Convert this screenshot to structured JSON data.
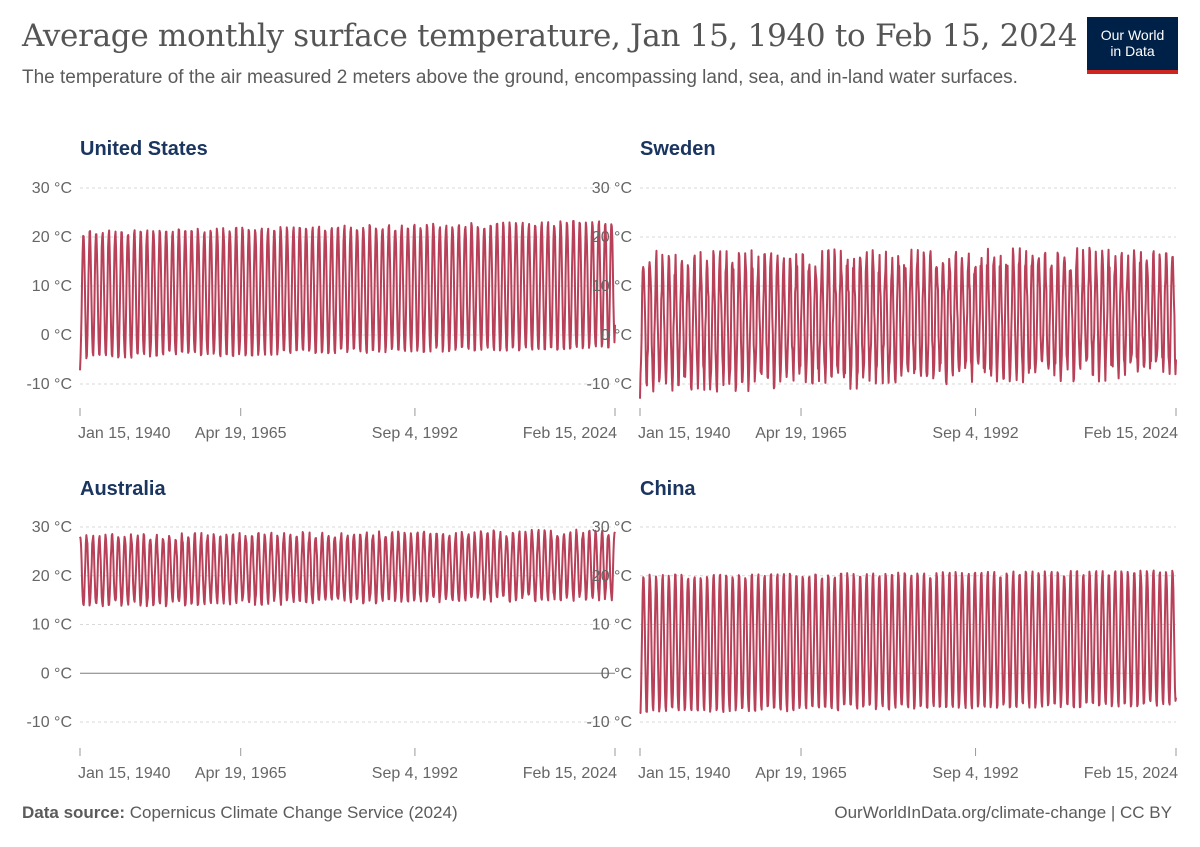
{
  "header": {
    "title": "Average monthly surface temperature, Jan 15, 1940 to Feb 15, 2024",
    "subtitle": "The temperature of the air measured 2 meters above the ground, encompassing land, sea, and in-land water surfaces."
  },
  "logo": {
    "line1": "Our World",
    "line2": "in Data",
    "bg": "#002147",
    "accent": "#ce261e"
  },
  "footer": {
    "source_label": "Data source:",
    "source_text": "Copernicus Climate Change Service (2024)",
    "right_text": "OurWorldInData.org/climate-change | CC BY"
  },
  "colors": {
    "line": "#b84058",
    "grid": "#d9d9d9",
    "zero": "#7f7f7f",
    "text": "#666666",
    "title": "#1a3560"
  },
  "chart_data": [
    {
      "type": "line",
      "title": "United States",
      "x_start": "1940-01-15",
      "x_end": "2024-02-15",
      "xticks": [
        "Jan 15, 1940",
        "Apr 19, 1965",
        "Sep 4, 1992",
        "Feb 15, 2024"
      ],
      "yticks": [
        "30 °C",
        "20 °C",
        "10 °C",
        "0 °C",
        "-10 °C"
      ],
      "ylim": [
        -10,
        30
      ],
      "grid": true,
      "series": [
        {
          "peak_trend": [
            21.0,
            23.2
          ],
          "trough_trend": [
            -4.6,
            -2.6
          ],
          "first_value": -7.2,
          "last_value": 2.1
        }
      ]
    },
    {
      "type": "line",
      "title": "Sweden",
      "x_start": "1940-01-15",
      "x_end": "2024-02-15",
      "xticks": [
        "Jan 15, 1940",
        "Apr 19, 1965",
        "Sep 4, 1992",
        "Feb 15, 2024"
      ],
      "yticks": [
        "30 °C",
        "20 °C",
        "10 °C",
        "0 °C",
        "-10 °C"
      ],
      "ylim": [
        -10,
        30
      ],
      "grid": true,
      "series": [
        {
          "peak_trend": [
            15.0,
            16.0
          ],
          "trough_trend": [
            -10.0,
            -7.0
          ],
          "peak_max": 19.5,
          "trough_min": -16.0,
          "first_value": -13.0,
          "last_value": -5.0
        }
      ]
    },
    {
      "type": "line",
      "title": "Australia",
      "x_start": "1940-01-15",
      "x_end": "2024-02-15",
      "xticks": [
        "Jan 15, 1940",
        "Apr 19, 1965",
        "Sep 4, 1992",
        "Feb 15, 2024"
      ],
      "yticks": [
        "30 °C",
        "20 °C",
        "10 °C",
        "0 °C",
        "-10 °C"
      ],
      "ylim": [
        -10,
        30
      ],
      "grid": true,
      "series": [
        {
          "peak_trend": [
            28.0,
            29.0
          ],
          "trough_trend": [
            14.0,
            15.5
          ],
          "first_value": 28.0,
          "last_value": 29.0
        }
      ]
    },
    {
      "type": "line",
      "title": "China",
      "x_start": "1940-01-15",
      "x_end": "2024-02-15",
      "xticks": [
        "Jan 15, 1940",
        "Apr 19, 1965",
        "Sep 4, 1992",
        "Feb 15, 2024"
      ],
      "yticks": [
        "30 °C",
        "20 °C",
        "10 °C",
        "0 °C",
        "-10 °C"
      ],
      "ylim": [
        -10,
        30
      ],
      "grid": true,
      "series": [
        {
          "peak_trend": [
            20.0,
            21.0
          ],
          "trough_trend": [
            -8.0,
            -6.5
          ],
          "first_value": -8.0,
          "last_value": -5.0
        }
      ]
    }
  ]
}
